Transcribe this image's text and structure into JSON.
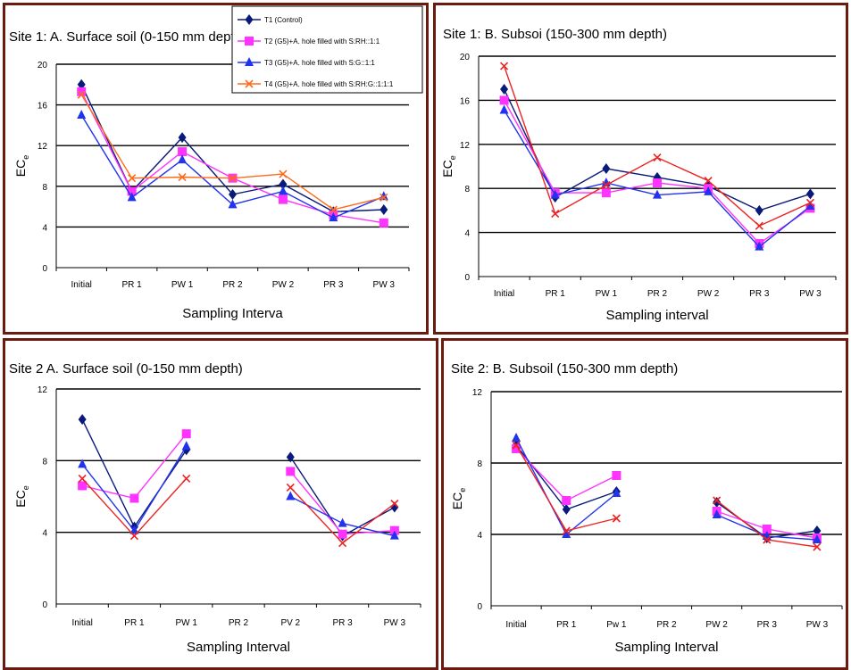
{
  "colors": {
    "panel_border": "#6b1a10",
    "gridline": "#000000",
    "series": [
      "#0a1a7a",
      "#ff33ff",
      "#2233ee",
      "#ff6a1a"
    ]
  },
  "legend": {
    "items": [
      {
        "label": "T1 (Control)",
        "color": "#0a1a7a",
        "marker": "diamond"
      },
      {
        "label": "T2 (G5)+A. hole filled with S:RH::1:1",
        "color": "#ff33ff",
        "marker": "square"
      },
      {
        "label": "T3 (G5)+A. hole filled with S:G::1:1",
        "color": "#2233ee",
        "marker": "triangle"
      },
      {
        "label": "T4 (G5)+A. hole filled with S:RH:G::1:1:1",
        "color": "#ff6a1a",
        "marker": "x"
      }
    ]
  },
  "chart_data": [
    {
      "type": "line",
      "title": "Site 1: A. Surface soil (0-150 mm depth)",
      "xlabel": "Sampling Interva",
      "ylabel": "EC",
      "ylabel_sub": "e",
      "categories": [
        "Initial",
        "PR 1",
        "PW 1",
        "PR 2",
        "PW 2",
        "PR 3",
        "PW 3"
      ],
      "yticks": [
        "0",
        "4",
        "8",
        "12",
        "16",
        "20"
      ],
      "ylim": [
        0,
        20
      ],
      "grid": true,
      "legend_position": "top-right",
      "series": [
        {
          "name": "T1 (Control)",
          "color": "#0a1a7a",
          "marker": "diamond",
          "values": [
            18,
            7.5,
            12.8,
            7.2,
            8.2,
            5.5,
            5.7
          ]
        },
        {
          "name": "T2 (G5)+A. hole filled with S:RH::1:1",
          "color": "#ff33ff",
          "marker": "square",
          "values": [
            17.3,
            7.5,
            11.4,
            8.8,
            6.7,
            5.2,
            4.4
          ]
        },
        {
          "name": "T3 (G5)+A. hole filled with S:G::1:1",
          "color": "#2233ee",
          "marker": "triangle",
          "values": [
            15,
            6.9,
            10.6,
            6.2,
            7.5,
            4.9,
            7
          ]
        },
        {
          "name": "T4 (G5)+A. hole filled with S:RH:G::1:1:1",
          "color": "#ff6a1a",
          "marker": "x",
          "values": [
            17,
            8.8,
            8.9,
            8.8,
            9.2,
            5.7,
            6.9
          ]
        }
      ]
    },
    {
      "type": "line",
      "title": "Site 1: B. Subsoi (150-300 mm depth)",
      "xlabel": "Sampling interval",
      "ylabel": "EC",
      "ylabel_sub": "e",
      "categories": [
        "Initial",
        "PR 1",
        "PW 1",
        "PR 2",
        "PW 2",
        "PR 3",
        "PW 3"
      ],
      "yticks": [
        "0",
        "4",
        "8",
        "12",
        "16",
        "20"
      ],
      "ylim": [
        0,
        20
      ],
      "grid": true,
      "series": [
        {
          "name": "T1",
          "color": "#0a1a7a",
          "marker": "diamond",
          "values": [
            17,
            7.2,
            9.8,
            9,
            8.2,
            6,
            7.5
          ]
        },
        {
          "name": "T2",
          "color": "#ff33ff",
          "marker": "square",
          "values": [
            16,
            7.6,
            7.6,
            8.5,
            8,
            3,
            6.2
          ]
        },
        {
          "name": "T3",
          "color": "#2233ee",
          "marker": "triangle",
          "values": [
            15.1,
            7.4,
            8.5,
            7.4,
            7.7,
            2.7,
            6.4
          ]
        },
        {
          "name": "T4",
          "color": "#ee2222",
          "marker": "x",
          "values": [
            19.1,
            5.7,
            8.3,
            10.8,
            8.7,
            4.6,
            6.7
          ]
        }
      ]
    },
    {
      "type": "line",
      "title": "Site 2 A. Surface soil (0-150 mm depth)",
      "xlabel": "Sampling Interval",
      "ylabel": "EC",
      "ylabel_sub": "e",
      "categories": [
        "Initial",
        "PR 1",
        "PW 1",
        "PR 2",
        "PV 2",
        "PR 3",
        "PW 3"
      ],
      "yticks": [
        "0",
        "4",
        "8",
        "12"
      ],
      "ylim": [
        0,
        12
      ],
      "grid": true,
      "series": [
        {
          "name": "T1",
          "color": "#0a1a7a",
          "marker": "diamond",
          "values": [
            10.3,
            4.3,
            8.6,
            null,
            8.2,
            3.8,
            5.4
          ]
        },
        {
          "name": "T2",
          "color": "#ff33ff",
          "marker": "square",
          "values": [
            6.6,
            5.9,
            9.5,
            null,
            7.4,
            3.9,
            4.1
          ]
        },
        {
          "name": "T3",
          "color": "#2233ee",
          "marker": "triangle",
          "values": [
            7.8,
            4.1,
            8.8,
            null,
            6,
            4.5,
            3.8
          ]
        },
        {
          "name": "T4",
          "color": "#ee2222",
          "marker": "x",
          "values": [
            7,
            3.8,
            7,
            null,
            6.5,
            3.4,
            5.6
          ]
        }
      ]
    },
    {
      "type": "line",
      "title": "Site 2: B. Subsoil (150-300 mm depth)",
      "xlabel": "Sampling Interval",
      "ylabel": "EC",
      "ylabel_sub": "e",
      "categories": [
        "Initial",
        "PR 1",
        "Pw 1",
        "PR 2",
        "PW 2",
        "PR 3",
        "PW 3"
      ],
      "yticks": [
        "0",
        "4",
        "8",
        "12"
      ],
      "ylim": [
        0,
        12
      ],
      "grid": true,
      "series": [
        {
          "name": "T1",
          "color": "#0a1a7a",
          "marker": "diamond",
          "values": [
            9,
            5.4,
            6.4,
            null,
            5.8,
            3.8,
            4.2
          ]
        },
        {
          "name": "T2",
          "color": "#ff33ff",
          "marker": "square",
          "values": [
            8.8,
            5.9,
            7.3,
            null,
            5.3,
            4.3,
            3.8
          ]
        },
        {
          "name": "T3",
          "color": "#2233ee",
          "marker": "triangle",
          "values": [
            9.4,
            4,
            6.3,
            null,
            5.1,
            3.9,
            3.7
          ]
        },
        {
          "name": "T4",
          "color": "#ee2222",
          "marker": "x",
          "values": [
            9,
            4.2,
            4.9,
            null,
            5.9,
            3.7,
            3.3
          ]
        }
      ]
    }
  ]
}
